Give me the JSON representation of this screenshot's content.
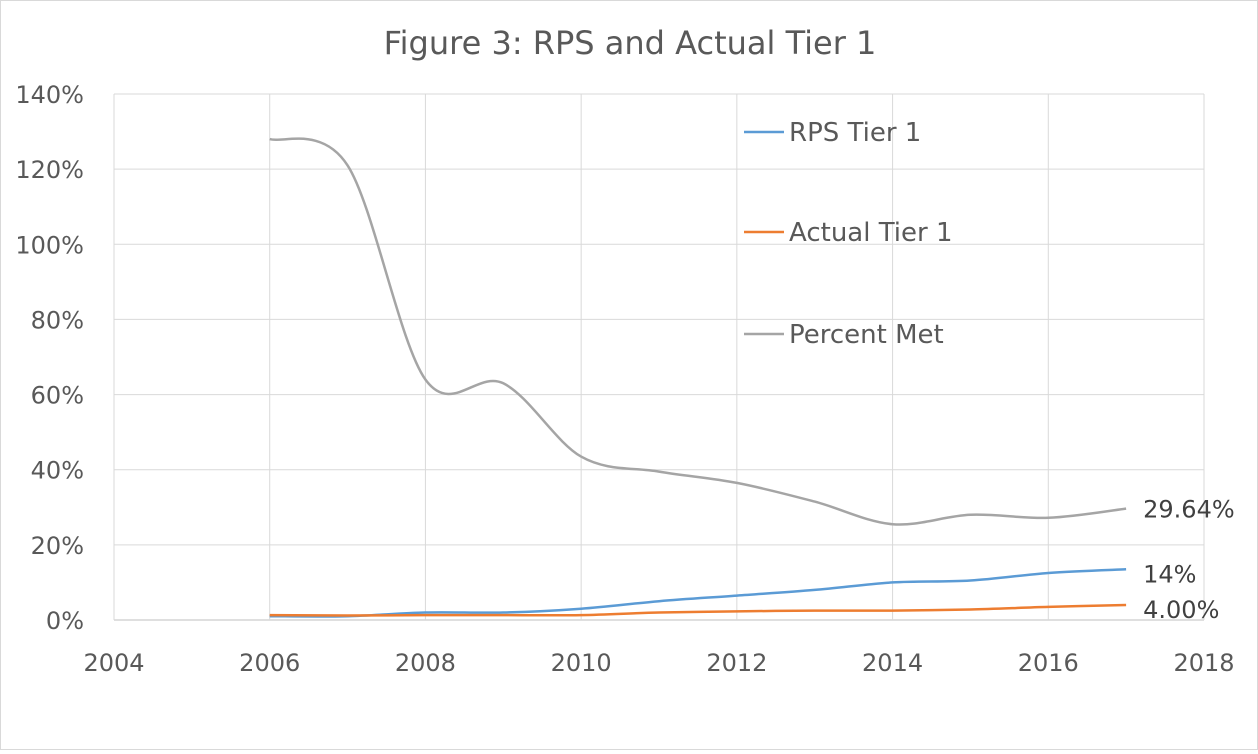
{
  "chart_data": {
    "type": "line",
    "title": "Figure 3: RPS and Actual Tier 1",
    "xlabel": "",
    "ylabel": "",
    "xlim": [
      2004,
      2018
    ],
    "ylim": [
      0,
      1.4
    ],
    "x_ticks": [
      "2004",
      "2006",
      "2008",
      "2010",
      "2012",
      "2014",
      "2016",
      "2018"
    ],
    "y_ticks": [
      "0%",
      "20%",
      "40%",
      "60%",
      "80%",
      "100%",
      "120%",
      "140%"
    ],
    "grid": true,
    "legend_position": "top-right",
    "series": [
      {
        "name": "RPS Tier 1",
        "color": "#5b9bd5",
        "x": [
          2006,
          2007,
          2008,
          2009,
          2010,
          2011,
          2012,
          2013,
          2014,
          2015,
          2016,
          2017
        ],
        "values": [
          0.01,
          0.01,
          0.02,
          0.02,
          0.03,
          0.05,
          0.065,
          0.08,
          0.1,
          0.105,
          0.125,
          0.135
        ],
        "end_label": "14%"
      },
      {
        "name": "Actual Tier 1",
        "color": "#ed7d31",
        "x": [
          2006,
          2007,
          2008,
          2009,
          2010,
          2011,
          2012,
          2013,
          2014,
          2015,
          2016,
          2017
        ],
        "values": [
          0.013,
          0.012,
          0.013,
          0.013,
          0.013,
          0.02,
          0.023,
          0.025,
          0.025,
          0.028,
          0.035,
          0.04
        ],
        "end_label": "4.00%"
      },
      {
        "name": "Percent Met",
        "color": "#a5a5a5",
        "x": [
          2006,
          2007,
          2008,
          2009,
          2010,
          2011,
          2012,
          2013,
          2014,
          2015,
          2016,
          2017
        ],
        "values": [
          1.28,
          1.21,
          0.64,
          0.63,
          0.435,
          0.395,
          0.365,
          0.315,
          0.255,
          0.28,
          0.272,
          0.2964
        ],
        "end_label": "29.64%"
      }
    ]
  }
}
